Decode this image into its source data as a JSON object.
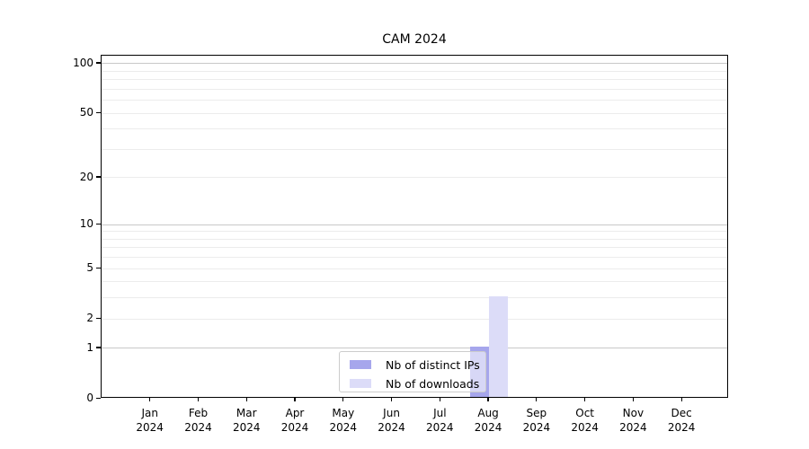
{
  "title": "CAM 2024",
  "chart_data": {
    "type": "bar",
    "title": "CAM 2024",
    "categories": [
      "Jan 2024",
      "Feb 2024",
      "Mar 2024",
      "Apr 2024",
      "May 2024",
      "Jun 2024",
      "Jul 2024",
      "Aug 2024",
      "Sep 2024",
      "Oct 2024",
      "Nov 2024",
      "Dec 2024"
    ],
    "series": [
      {
        "name": "Nb of distinct IPs",
        "color": "#a6a6ec",
        "values": [
          0,
          0,
          0,
          0,
          0,
          0,
          0,
          1,
          0,
          0,
          0,
          0
        ]
      },
      {
        "name": "Nb of downloads",
        "color": "#dcdcf8",
        "values": [
          0,
          0,
          0,
          0,
          0,
          0,
          0,
          3,
          0,
          0,
          0,
          0
        ]
      }
    ],
    "xlabel": "",
    "ylabel": "",
    "y_axis": {
      "scale": "log10(value+1)",
      "tick_values": [
        0,
        1,
        2,
        5,
        10,
        20,
        50,
        100
      ],
      "major_gridline_values": [
        1,
        10,
        100
      ],
      "minor_gridline_values": [
        2,
        3,
        4,
        5,
        6,
        7,
        8,
        9,
        20,
        30,
        40,
        50,
        60,
        70,
        80,
        90
      ],
      "top_value": 112
    },
    "grid": true,
    "legend": {
      "position": "lower center",
      "entries": [
        "Nb of distinct IPs",
        "Nb of downloads"
      ]
    },
    "colors": {
      "major_grid": "#c8c8c8",
      "minor_grid": "#ececec",
      "spine": "#000000",
      "legend_border": "#cccccc",
      "background": "#ffffff"
    }
  }
}
